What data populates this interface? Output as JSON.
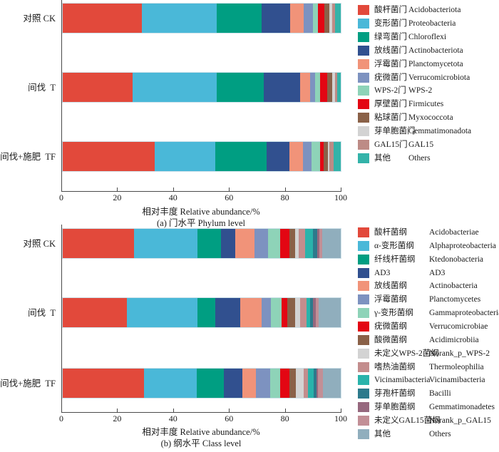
{
  "figure": {
    "axis_color": "#4a4a4a",
    "bar_outline_color": "#cfe2ea",
    "background": "#ffffff"
  },
  "chart_data": [
    {
      "type": "bar",
      "subtype": "horizontal-stacked",
      "panel_caption": "(a) 门水平 Phylum level",
      "xlabel": "相对丰度 Relative abundance/%",
      "categories": [
        "对照 CK",
        "间伐  T",
        "间伐+施肥  TF"
      ],
      "xlim": [
        0,
        100
      ],
      "xticks": [
        0,
        20,
        40,
        60,
        80,
        100
      ],
      "legend_position": "right",
      "grid": false,
      "series": [
        {
          "cn": "酸杆菌门",
          "en": "Acidobacteriota",
          "color": "#e2493b",
          "values": [
            28.5,
            25.1,
            33.1
          ]
        },
        {
          "cn": "变形菌门",
          "en": "Proteobacteria",
          "color": "#4ab8d8",
          "values": [
            27.0,
            30.3,
            21.9
          ]
        },
        {
          "cn": "绿弯菌门",
          "en": "Chloroflexi",
          "color": "#009e82",
          "values": [
            16.0,
            16.9,
            18.3
          ]
        },
        {
          "cn": "放线菌门",
          "en": "Actinobacteriota",
          "color": "#31508f",
          "values": [
            10.2,
            13.0,
            8.3
          ]
        },
        {
          "cn": "浮霉菌门",
          "en": "Planctomycetota",
          "color": "#f19379",
          "values": [
            5.1,
            3.6,
            4.8
          ]
        },
        {
          "cn": "疣微菌门",
          "en": "Verrucomicrobiota",
          "color": "#7d92c0",
          "values": [
            3.1,
            1.9,
            3.0
          ]
        },
        {
          "cn": "WPS-2门",
          "en": "WPS-2",
          "color": "#8ed3b8",
          "values": [
            1.9,
            1.8,
            3.2
          ]
        },
        {
          "cn": "厚壁菌门",
          "en": "Firmicutes",
          "color": "#e30613",
          "values": [
            2.3,
            2.5,
            1.2
          ]
        },
        {
          "cn": "粘球菌门",
          "en": "Myxococcota",
          "color": "#8a6148",
          "values": [
            1.8,
            1.8,
            1.5
          ]
        },
        {
          "cn": "芽单胞菌门",
          "en": "Gemmatimonadota",
          "color": "#d3d3d3",
          "values": [
            1.0,
            1.0,
            0.7
          ]
        },
        {
          "cn": "GAL15门",
          "en": "GAL15",
          "color": "#bd8b86",
          "values": [
            1.0,
            0.9,
            1.4
          ]
        },
        {
          "cn": "其他",
          "en": "Others",
          "color": "#33b3a9",
          "values": [
            2.1,
            1.3,
            2.6
          ]
        }
      ]
    },
    {
      "type": "bar",
      "subtype": "horizontal-stacked",
      "panel_caption": "(b) 纲水平 Class level",
      "xlabel": "相对丰度 Relative abundance/%",
      "categories": [
        "对照 CK",
        "间伐  T",
        "间伐+施肥  TF"
      ],
      "xlim": [
        0,
        100
      ],
      "xticks": [
        0,
        20,
        40,
        60,
        80,
        100
      ],
      "legend_position": "right",
      "grid": false,
      "series": [
        {
          "cn": "酸杆菌纲",
          "en": "Acidobacteriae",
          "color": "#e2493b",
          "values": [
            25.6,
            23.0,
            29.3
          ]
        },
        {
          "cn": "α-变形菌纲",
          "en": "Alphaproteobacteria",
          "color": "#4ab8d8",
          "values": [
            22.9,
            25.5,
            19.0
          ]
        },
        {
          "cn": "纤线杆菌纲",
          "en": "Ktedonobacteria",
          "color": "#009e82",
          "values": [
            8.5,
            6.4,
            9.6
          ]
        },
        {
          "cn": "AD3",
          "en": "AD3",
          "color": "#31508f",
          "values": [
            5.1,
            8.9,
            6.7
          ]
        },
        {
          "cn": "放线菌纲",
          "en": "Actinobacteria",
          "color": "#f19379",
          "values": [
            7.0,
            7.7,
            4.9
          ]
        },
        {
          "cn": "浮霉菌纲",
          "en": "Planctomycetes",
          "color": "#7d92c0",
          "values": [
            4.8,
            3.4,
            5.1
          ]
        },
        {
          "cn": "γ-变形菌纲",
          "en": "Gammaproteobacteria",
          "color": "#8ed3b8",
          "values": [
            4.4,
            3.8,
            3.6
          ]
        },
        {
          "cn": "疣微菌纲",
          "en": "Verrucomicrobiae",
          "color": "#e30613",
          "values": [
            3.2,
            2.0,
            3.4
          ]
        },
        {
          "cn": "酸微菌纲",
          "en": "Acidimicrobiia",
          "color": "#8a6148",
          "values": [
            2.0,
            2.9,
            2.2
          ]
        },
        {
          "cn": "未定义WPS-2菌纲",
          "en": "Norank_p_WPS-2",
          "color": "#d3d3d3",
          "values": [
            1.3,
            1.8,
            2.9
          ]
        },
        {
          "cn": "嗜热油菌纲",
          "en": "Thermoleophilia",
          "color": "#c38d8d",
          "values": [
            2.5,
            2.2,
            1.4
          ]
        },
        {
          "cn": "Vicinamibacteria",
          "en": "Vicinamibacteria",
          "color": "#29b3ab",
          "values": [
            2.6,
            1.5,
            2.1
          ]
        },
        {
          "cn": "芽孢杆菌纲",
          "en": "Bacilli",
          "color": "#2d7a8c",
          "values": [
            1.6,
            1.0,
            1.0
          ]
        },
        {
          "cn": "芽单胞菌纲",
          "en": "Gemmatimonadetes",
          "color": "#96687e",
          "values": [
            0.9,
            1.0,
            0.7
          ]
        },
        {
          "cn": "未定义GAL15菌纲",
          "en": "Norank_p_GAL15",
          "color": "#c28f96",
          "values": [
            1.0,
            0.9,
            1.7
          ]
        },
        {
          "cn": "其他",
          "en": "Others",
          "color": "#90aebd",
          "values": [
            6.6,
            8.0,
            6.4
          ]
        }
      ]
    }
  ]
}
